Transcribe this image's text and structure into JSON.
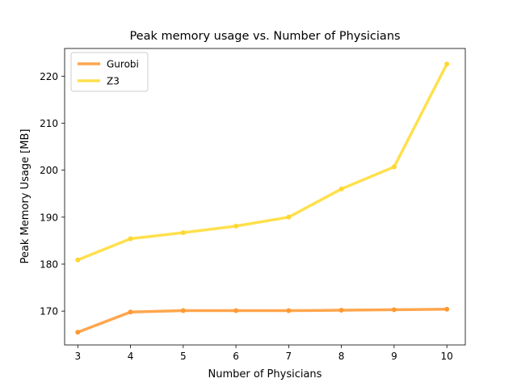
{
  "chart_data": {
    "type": "line",
    "title": "Peak memory usage vs. Number of Physicians",
    "xlabel": "Number of Physicians",
    "ylabel": "Peak Memory Usage [MB]",
    "x": [
      3,
      4,
      5,
      6,
      7,
      8,
      9,
      10
    ],
    "xlim": [
      2.75,
      10.35
    ],
    "ylim": [
      162.8,
      225.9
    ],
    "xticks": [
      3,
      4,
      5,
      6,
      7,
      8,
      9,
      10
    ],
    "yticks": [
      170,
      180,
      190,
      200,
      210,
      220
    ],
    "grid": false,
    "legend_position": "top-left",
    "series": [
      {
        "name": "Gurobi",
        "color": "#ffa64d",
        "marker_color": "#ff9a33",
        "values": [
          165.5,
          169.8,
          170.1,
          170.1,
          170.1,
          170.2,
          170.3,
          170.4
        ]
      },
      {
        "name": "Z3",
        "color": "#ffe04d",
        "marker_color": "#ffd633",
        "values": [
          180.9,
          185.4,
          186.7,
          188.1,
          190.0,
          196.0,
          200.7,
          222.6
        ]
      }
    ]
  }
}
